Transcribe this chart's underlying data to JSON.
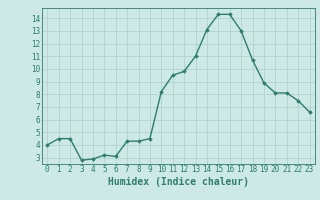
{
  "x": [
    0,
    1,
    2,
    3,
    4,
    5,
    6,
    7,
    8,
    9,
    10,
    11,
    12,
    13,
    14,
    15,
    16,
    17,
    18,
    19,
    20,
    21,
    22,
    23
  ],
  "y": [
    4.0,
    4.5,
    4.5,
    2.8,
    2.9,
    3.2,
    3.1,
    4.3,
    4.3,
    4.5,
    8.2,
    9.5,
    9.8,
    11.0,
    13.1,
    14.3,
    14.3,
    13.0,
    10.7,
    8.9,
    8.1,
    8.1,
    7.5,
    6.6
  ],
  "line_color": "#2e7d6e",
  "marker": "D",
  "marker_size": 1.8,
  "bg_color": "#cce9e5",
  "grid_color": "#aecfcb",
  "xlabel": "Humidex (Indice chaleur)",
  "xlim": [
    -0.5,
    23.5
  ],
  "ylim": [
    2.5,
    14.8
  ],
  "yticks": [
    3,
    4,
    5,
    6,
    7,
    8,
    9,
    10,
    11,
    12,
    13,
    14
  ],
  "xticks": [
    0,
    1,
    2,
    3,
    4,
    5,
    6,
    7,
    8,
    9,
    10,
    11,
    12,
    13,
    14,
    15,
    16,
    17,
    18,
    19,
    20,
    21,
    22,
    23
  ],
  "tick_fontsize": 5.5,
  "label_fontsize": 7.0,
  "line_width": 1.0
}
